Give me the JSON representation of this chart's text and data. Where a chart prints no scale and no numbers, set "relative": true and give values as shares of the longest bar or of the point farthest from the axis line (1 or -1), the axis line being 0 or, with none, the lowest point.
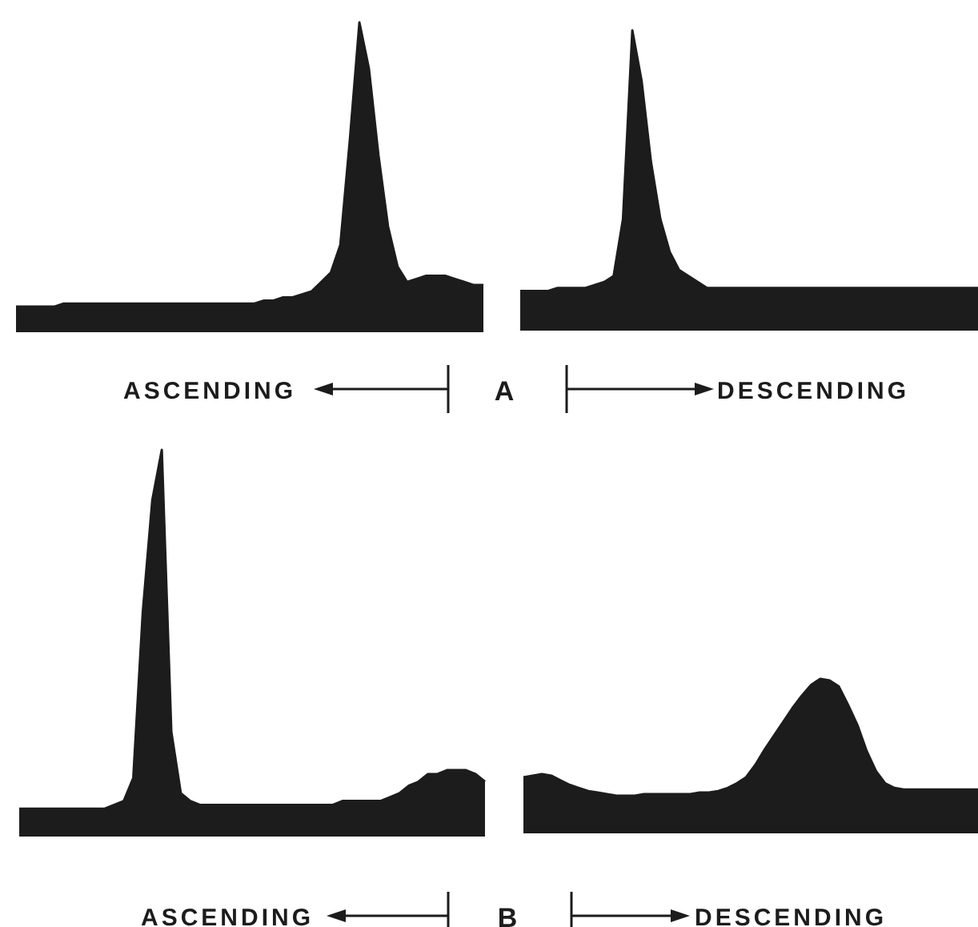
{
  "chart_data": [
    {
      "type": "area",
      "xlabel": "ASCENDING",
      "annotations": [
        "A"
      ],
      "relative": true,
      "categories": [
        null,
        null,
        null,
        null,
        null,
        null,
        null,
        null,
        null,
        null,
        null,
        null,
        null,
        null,
        null,
        null,
        null,
        null,
        null,
        null,
        null,
        null,
        null,
        null,
        null,
        null,
        null,
        null,
        null,
        null,
        null,
        null,
        null,
        null,
        null,
        null,
        null,
        null,
        null,
        null,
        null,
        null,
        null,
        null,
        null,
        null,
        null,
        null,
        null,
        null
      ],
      "series": [
        {
          "color": "#1c1c1c",
          "values": [
            0.08,
            0.08,
            0.08,
            0.08,
            0.08,
            0.09,
            0.09,
            0.09,
            0.09,
            0.09,
            0.09,
            0.09,
            0.09,
            0.09,
            0.09,
            0.09,
            0.09,
            0.09,
            0.09,
            0.09,
            0.09,
            0.09,
            0.09,
            0.09,
            0.09,
            0.09,
            0.1,
            0.1,
            0.11,
            0.11,
            0.12,
            0.13,
            0.16,
            0.19,
            0.28,
            0.62,
            1,
            0.85,
            0.57,
            0.34,
            0.21,
            0.16,
            0.17,
            0.18,
            0.18,
            0.18,
            0.17,
            0.16,
            0.15,
            0.15
          ]
        }
      ]
    },
    {
      "type": "area",
      "xlabel": "DESCENDING",
      "relative": true,
      "categories": [
        null,
        null,
        null,
        null,
        null,
        null,
        null,
        null,
        null,
        null,
        null,
        null,
        null,
        null,
        null,
        null,
        null,
        null,
        null,
        null,
        null,
        null,
        null,
        null,
        null,
        null,
        null,
        null,
        null,
        null,
        null,
        null,
        null,
        null,
        null,
        null,
        null,
        null,
        null,
        null,
        null,
        null,
        null,
        null,
        null,
        null,
        null,
        null,
        null,
        null
      ],
      "series": [
        {
          "color": "#1c1c1c",
          "values": [
            0.13,
            0.13,
            0.13,
            0.13,
            0.14,
            0.14,
            0.14,
            0.14,
            0.15,
            0.16,
            0.18,
            0.37,
            1,
            0.83,
            0.56,
            0.37,
            0.26,
            0.2,
            0.18,
            0.16,
            0.14,
            0.14,
            0.14,
            0.14,
            0.14,
            0.14,
            0.14,
            0.14,
            0.14,
            0.14,
            0.14,
            0.14,
            0.14,
            0.14,
            0.14,
            0.14,
            0.14,
            0.14,
            0.14,
            0.14,
            0.14,
            0.14,
            0.14,
            0.14,
            0.14,
            0.14,
            0.14,
            0.14,
            0.14,
            0.14
          ]
        }
      ]
    },
    {
      "type": "area",
      "xlabel": "ASCENDING",
      "annotations": [
        "B"
      ],
      "relative": true,
      "categories": [
        null,
        null,
        null,
        null,
        null,
        null,
        null,
        null,
        null,
        null,
        null,
        null,
        null,
        null,
        null,
        null,
        null,
        null,
        null,
        null,
        null,
        null,
        null,
        null,
        null,
        null,
        null,
        null,
        null,
        null,
        null,
        null,
        null,
        null,
        null,
        null,
        null,
        null,
        null,
        null,
        null,
        null,
        null,
        null,
        null,
        null,
        null,
        null,
        null,
        null
      ],
      "series": [
        {
          "color": "#1c1c1c",
          "values": [
            0.07,
            0.07,
            0.07,
            0.07,
            0.07,
            0.07,
            0.07,
            0.07,
            0.07,
            0.07,
            0.08,
            0.09,
            0.15,
            0.58,
            0.87,
            1,
            0.27,
            0.11,
            0.09,
            0.08,
            0.08,
            0.08,
            0.08,
            0.08,
            0.08,
            0.08,
            0.08,
            0.08,
            0.08,
            0.08,
            0.08,
            0.08,
            0.08,
            0.08,
            0.09,
            0.09,
            0.09,
            0.09,
            0.09,
            0.1,
            0.11,
            0.13,
            0.14,
            0.16,
            0.16,
            0.17,
            0.17,
            0.17,
            0.16,
            0.14
          ]
        }
      ]
    },
    {
      "type": "area",
      "xlabel": "DESCENDING",
      "relative": true,
      "categories": [
        null,
        null,
        null,
        null,
        null,
        null,
        null,
        null,
        null,
        null,
        null,
        null,
        null,
        null,
        null,
        null,
        null,
        null,
        null,
        null,
        null,
        null,
        null,
        null,
        null,
        null,
        null,
        null,
        null,
        null,
        null,
        null,
        null,
        null,
        null,
        null,
        null,
        null,
        null,
        null,
        null,
        null,
        null,
        null,
        null,
        null,
        null,
        null,
        null,
        null
      ],
      "series": [
        {
          "color": "#1c1c1c",
          "values": [
            0.36,
            0.37,
            0.38,
            0.37,
            0.34,
            0.31,
            0.29,
            0.27,
            0.26,
            0.25,
            0.24,
            0.24,
            0.24,
            0.25,
            0.25,
            0.25,
            0.25,
            0.25,
            0.25,
            0.26,
            0.26,
            0.27,
            0.29,
            0.32,
            0.36,
            0.44,
            0.54,
            0.63,
            0.72,
            0.81,
            0.89,
            0.96,
            1,
            0.99,
            0.95,
            0.83,
            0.7,
            0.53,
            0.4,
            0.32,
            0.29,
            0.28,
            0.28,
            0.28,
            0.28,
            0.28,
            0.28,
            0.28,
            0.28,
            0.28
          ]
        }
      ]
    }
  ]
}
